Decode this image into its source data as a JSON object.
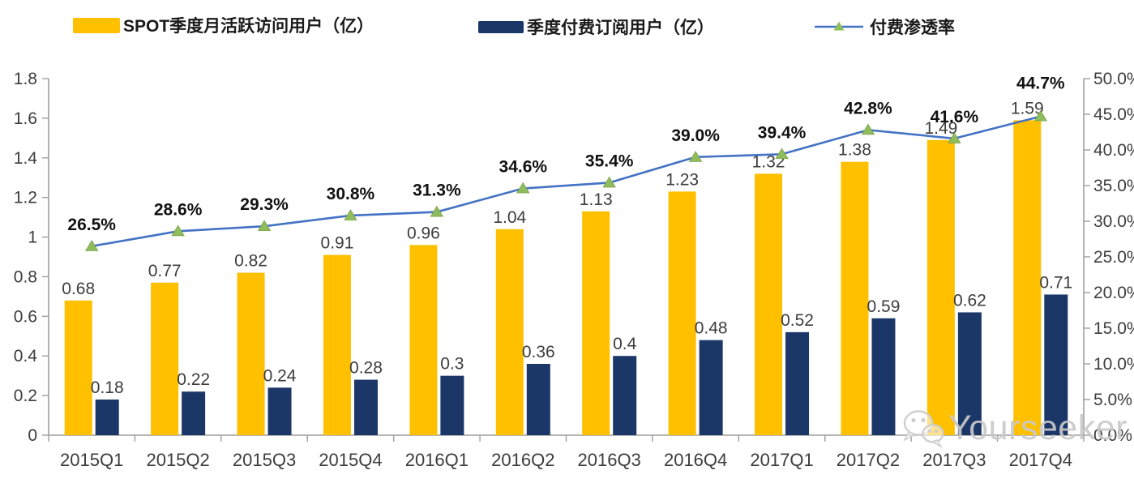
{
  "legend": {
    "items": [
      {
        "label": "SPOT季度月活跃访问用户（亿）",
        "swatch": "bar",
        "swatch_color": "#FFC000"
      },
      {
        "label": "季度付费订阅用户（亿）",
        "swatch": "bar",
        "swatch_color": "#1B3768"
      },
      {
        "label": "付费渗透率",
        "swatch": "line-marker",
        "line_color": "#4472C4",
        "marker_color": "#8FBC5C"
      }
    ]
  },
  "chart_data": {
    "type": "bar+line",
    "categories": [
      "2015Q1",
      "2015Q2",
      "2015Q3",
      "2015Q4",
      "2016Q1",
      "2016Q2",
      "2016Q3",
      "2016Q4",
      "2017Q1",
      "2017Q2",
      "2017Q3",
      "2017Q4"
    ],
    "series": [
      {
        "name": "SPOT季度月活跃访问用户（亿）",
        "type": "bar",
        "axis": "left",
        "color": "#FFC000",
        "values": [
          0.68,
          0.77,
          0.82,
          0.91,
          0.96,
          1.04,
          1.13,
          1.23,
          1.32,
          1.38,
          1.49,
          1.59
        ],
        "labels": [
          "0.68",
          "0.77",
          "0.82",
          "0.91",
          "0.96",
          "1.04",
          "1.13",
          "1.23",
          "1.32",
          "1.38",
          "1.49",
          "1.59"
        ]
      },
      {
        "name": "季度付费订阅用户（亿）",
        "type": "bar",
        "axis": "left",
        "color": "#1B3768",
        "values": [
          0.18,
          0.22,
          0.24,
          0.28,
          0.3,
          0.36,
          0.4,
          0.48,
          0.52,
          0.59,
          0.62,
          0.71
        ],
        "labels": [
          "0.18",
          "0.22",
          "0.24",
          "0.28",
          "0.3",
          "0.36",
          "0.4",
          "0.48",
          "0.52",
          "0.59",
          "0.62",
          "0.71"
        ]
      },
      {
        "name": "付费渗透率",
        "type": "line",
        "axis": "right",
        "color": "#4472C4",
        "marker": "triangle",
        "marker_color": "#8FBC5C",
        "values": [
          26.5,
          28.6,
          29.3,
          30.8,
          31.3,
          34.6,
          35.4,
          39.0,
          39.4,
          42.8,
          41.6,
          44.7
        ],
        "labels": [
          "26.5%",
          "28.6%",
          "29.3%",
          "30.8%",
          "31.3%",
          "34.6%",
          "35.4%",
          "39.0%",
          "39.4%",
          "42.8%",
          "41.6%",
          "44.7%"
        ]
      }
    ],
    "left_axis": {
      "min": 0,
      "max": 1.8,
      "step": 0.2,
      "tick_labels": [
        "0",
        "0.2",
        "0.4",
        "0.6",
        "0.8",
        "1",
        "1.2",
        "1.4",
        "1.6",
        "1.8"
      ]
    },
    "right_axis": {
      "min": 0,
      "max": 50,
      "step": 5,
      "unit": "%",
      "tick_labels": [
        "0.0%",
        "5.0%",
        "10.0%",
        "15.0%",
        "20.0%",
        "25.0%",
        "30.0%",
        "35.0%",
        "40.0%",
        "45.0%",
        "50.0%"
      ]
    },
    "grid": false,
    "legend_position": "top"
  },
  "watermark": {
    "text": "Yourseeker",
    "icon": "wechat-icon"
  }
}
